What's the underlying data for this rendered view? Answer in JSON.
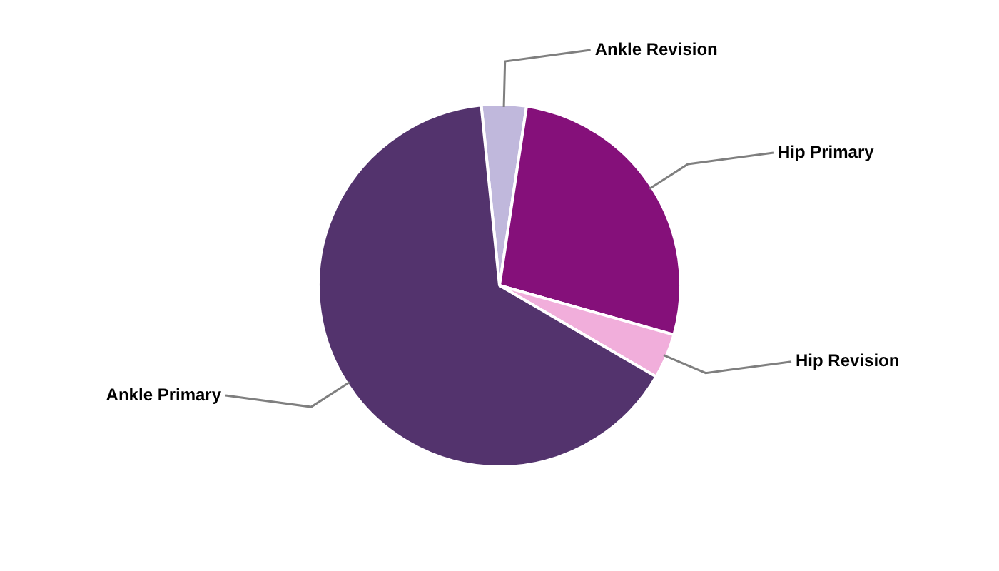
{
  "chart_data": {
    "type": "pie",
    "categories": [
      "Ankle Revision",
      "Hip Primary",
      "Hip Revision",
      "Ankle Primary"
    ],
    "values": [
      4,
      27,
      4,
      65
    ],
    "colors": [
      "#c0b8dc",
      "#85107a",
      "#f1aedb",
      "#53336d"
    ],
    "legend": false
  }
}
